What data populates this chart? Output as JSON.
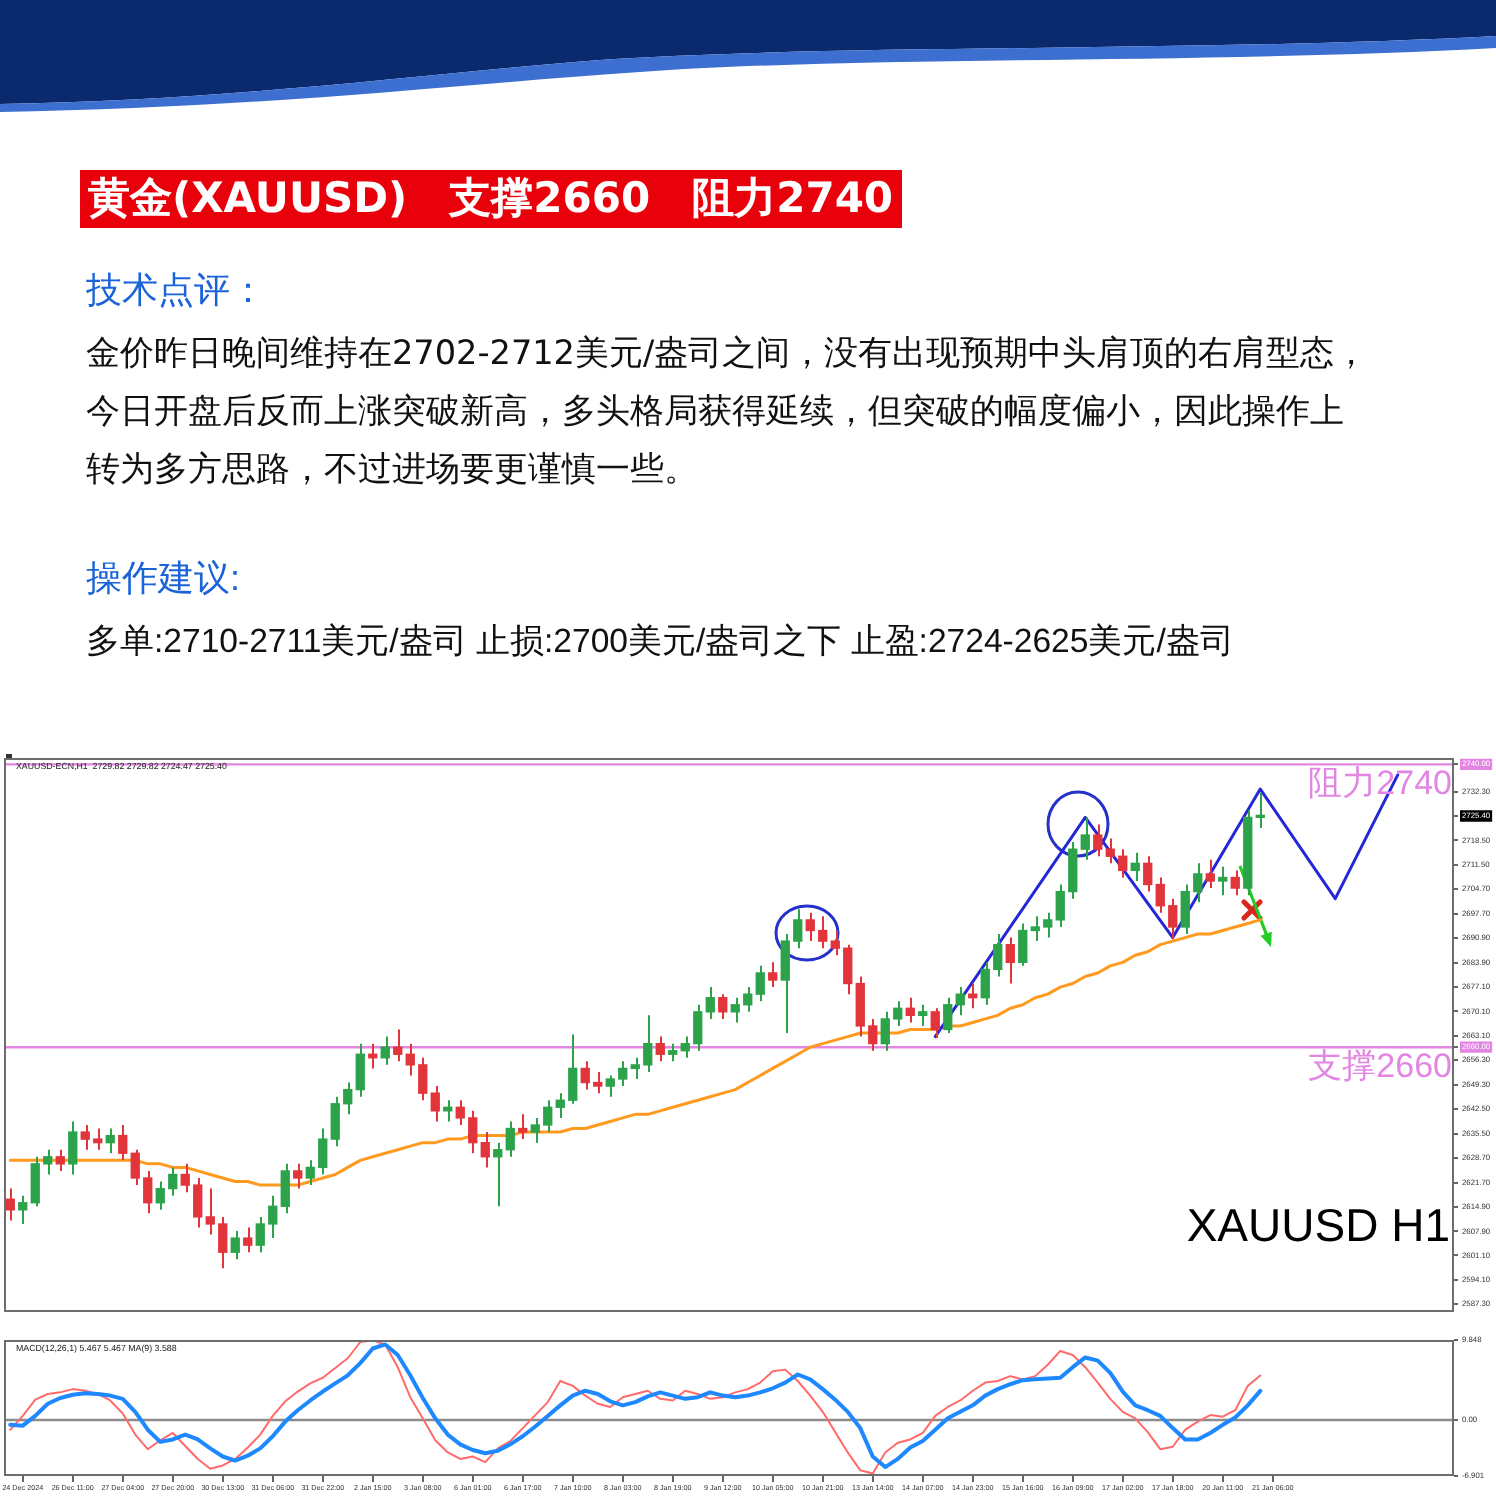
{
  "chart_data": [
    {
      "type": "other",
      "title": "黄金(XAUUSD)　支撑2660　阻力2740",
      "annotations": [
        "技术点评：",
        "金价昨日晚间维持在2702-2712美元/盎司之间，没有出现预期中头肩顶的右肩型态，今日开盘后反而上涨突破新高，多头格局获得延续，但突破的幅度偏小，因此操作上转为多方思路，不过进场要更谨慎一些。",
        "操作建议:",
        "多单:2710-2711美元/盎司 止损:2700美元/盎司之下 止盈:2724-2625美元/盎司"
      ]
    },
    {
      "type": "candlestick",
      "categories": [
        null,
        null,
        null,
        null,
        null,
        null,
        null,
        null,
        null,
        null,
        null,
        null,
        null,
        null,
        null,
        null,
        null,
        null,
        null,
        null,
        null,
        null,
        null,
        null,
        null,
        null,
        null,
        null,
        null,
        null,
        null,
        null,
        null,
        null,
        null,
        null,
        null,
        null,
        null,
        null,
        null,
        null,
        null,
        null,
        null,
        null,
        null,
        null,
        null,
        null,
        null,
        null,
        null,
        null,
        null,
        null,
        null,
        null,
        null,
        null,
        null,
        null,
        null,
        null,
        null,
        null,
        null,
        null,
        null,
        null,
        null,
        null,
        null,
        null,
        null,
        null,
        null,
        null,
        null,
        null,
        null,
        null,
        null,
        null,
        null,
        null,
        null,
        null,
        null,
        null,
        null,
        null,
        null,
        null,
        null,
        null,
        null,
        null,
        null,
        null,
        null,
        null,
        null,
        null,
        null,
        null,
        null,
        null,
        null,
        null,
        null,
        null,
        null,
        null,
        null,
        null
      ],
      "ohlc": [
        [
          2617,
          2620,
          2611,
          2614
        ],
        [
          2614,
          2618,
          2610,
          2616
        ],
        [
          2616,
          2629,
          2615,
          2627
        ],
        [
          2627,
          2631,
          2624,
          2629
        ],
        [
          2629,
          2631,
          2625,
          2627
        ],
        [
          2627,
          2639,
          2624,
          2636
        ],
        [
          2636,
          2638,
          2631,
          2634
        ],
        [
          2634,
          2637,
          2631,
          2633
        ],
        [
          2633,
          2637,
          2630,
          2635
        ],
        [
          2635,
          2638,
          2628,
          2630
        ],
        [
          2630,
          2631,
          2621,
          2623
        ],
        [
          2623,
          2625,
          2613,
          2616
        ],
        [
          2616,
          2622,
          2614,
          2620
        ],
        [
          2620,
          2626,
          2618,
          2624
        ],
        [
          2624,
          2627,
          2619,
          2621
        ],
        [
          2621,
          2623,
          2609,
          2612
        ],
        [
          2612,
          2620,
          2607,
          2610
        ],
        [
          2610,
          2612,
          2597.5,
          2602
        ],
        [
          2602,
          2608,
          2600,
          2606
        ],
        [
          2606,
          2609,
          2602,
          2604
        ],
        [
          2604,
          2612,
          2602,
          2610
        ],
        [
          2610,
          2618,
          2606,
          2615
        ],
        [
          2615,
          2627,
          2613,
          2625
        ],
        [
          2625,
          2627,
          2620,
          2623
        ],
        [
          2623,
          2628,
          2621,
          2626
        ],
        [
          2626,
          2637,
          2624,
          2634
        ],
        [
          2634,
          2646,
          2632,
          2644
        ],
        [
          2644,
          2650,
          2641,
          2648
        ],
        [
          2648,
          2661,
          2646,
          2658
        ],
        [
          2658,
          2661,
          2654,
          2657
        ],
        [
          2657,
          2663,
          2655,
          2660
        ],
        [
          2660,
          2665,
          2656,
          2658
        ],
        [
          2658,
          2661,
          2652,
          2655
        ],
        [
          2655,
          2657,
          2645,
          2647
        ],
        [
          2647,
          2649,
          2639,
          2642
        ],
        [
          2642,
          2645,
          2639,
          2643
        ],
        [
          2643,
          2645,
          2638,
          2640
        ],
        [
          2640,
          2642,
          2630,
          2633
        ],
        [
          2633,
          2636,
          2626,
          2629
        ],
        [
          2629,
          2633,
          2615,
          2631
        ],
        [
          2631,
          2639,
          2629,
          2637
        ],
        [
          2637,
          2641,
          2634,
          2636
        ],
        [
          2636,
          2640,
          2633,
          2638
        ],
        [
          2638,
          2645,
          2636,
          2643
        ],
        [
          2643,
          2647,
          2640,
          2645
        ],
        [
          2645,
          2663.6,
          2644,
          2654
        ],
        [
          2654,
          2656,
          2648,
          2650
        ],
        [
          2650,
          2653,
          2647,
          2649
        ],
        [
          2649,
          2652,
          2646,
          2651
        ],
        [
          2651,
          2656,
          2649,
          2654
        ],
        [
          2654,
          2657,
          2651,
          2655
        ],
        [
          2655,
          2669,
          2653,
          2661
        ],
        [
          2661,
          2663,
          2656,
          2658
        ],
        [
          2658,
          2661,
          2656,
          2659
        ],
        [
          2659,
          2663,
          2657,
          2661
        ],
        [
          2661,
          2672,
          2659,
          2670
        ],
        [
          2670,
          2677,
          2668,
          2674
        ],
        [
          2674,
          2675,
          2668,
          2670
        ],
        [
          2670,
          2674,
          2667,
          2672
        ],
        [
          2672,
          2677,
          2670,
          2675
        ],
        [
          2675,
          2683,
          2673,
          2681
        ],
        [
          2681,
          2684,
          2677,
          2679
        ],
        [
          2679,
          2692,
          2664,
          2690
        ],
        [
          2690,
          2699,
          2688,
          2696
        ],
        [
          2696,
          2698,
          2690,
          2693
        ],
        [
          2693,
          2697,
          2688,
          2690
        ],
        [
          2690,
          2693,
          2686,
          2688
        ],
        [
          2688,
          2689,
          2675,
          2678
        ],
        [
          2678,
          2680,
          2663,
          2666
        ],
        [
          2666,
          2668,
          2659,
          2661
        ],
        [
          2661,
          2670,
          2659,
          2668
        ],
        [
          2668,
          2673,
          2666,
          2671
        ],
        [
          2671,
          2674,
          2667,
          2669
        ],
        [
          2669,
          2672,
          2666,
          2670
        ],
        [
          2670,
          2671,
          2662.6,
          2665
        ],
        [
          2665,
          2674,
          2664,
          2672
        ],
        [
          2672,
          2677,
          2669,
          2675
        ],
        [
          2675,
          2678,
          2671,
          2674
        ],
        [
          2674,
          2684,
          2672,
          2682
        ],
        [
          2682,
          2692,
          2680,
          2689
        ],
        [
          2689,
          2691,
          2678,
          2684
        ],
        [
          2684,
          2695,
          2683,
          2693
        ],
        [
          2693,
          2697,
          2690,
          2694
        ],
        [
          2694,
          2698,
          2691,
          2696
        ],
        [
          2696,
          2706,
          2694,
          2704
        ],
        [
          2704,
          2718,
          2702,
          2716
        ],
        [
          2716,
          2725,
          2713,
          2720
        ],
        [
          2720,
          2723,
          2714,
          2716
        ],
        [
          2716,
          2719,
          2712,
          2714
        ],
        [
          2714,
          2716,
          2708,
          2710
        ],
        [
          2710,
          2715,
          2707,
          2712
        ],
        [
          2712,
          2714,
          2704,
          2706
        ],
        [
          2706,
          2708,
          2698,
          2700
        ],
        [
          2700,
          2702,
          2690.5,
          2694
        ],
        [
          2694,
          2706,
          2692,
          2704
        ],
        [
          2704,
          2712,
          2701,
          2709
        ],
        [
          2709,
          2713,
          2705,
          2707
        ],
        [
          2707,
          2711,
          2703,
          2708
        ],
        [
          2708,
          2710,
          2703,
          2705
        ],
        [
          2705,
          2727,
          2703,
          2725
        ],
        [
          2725,
          2732,
          2722,
          2725.4
        ],
        null,
        null,
        null,
        null,
        null,
        null,
        null,
        null,
        null,
        null,
        null,
        null,
        null,
        null,
        null
      ],
      "colors": [
        "#e2343b",
        "#2ca24a",
        "#2ca24a",
        "#2ca24a",
        "#e2343b",
        "#2ca24a",
        "#e2343b",
        "#e2343b",
        "#2ca24a",
        "#e2343b",
        "#e2343b",
        "#e2343b",
        "#2ca24a",
        "#2ca24a",
        "#e2343b",
        "#e2343b",
        "#e2343b",
        "#e2343b",
        "#2ca24a",
        "#e2343b",
        "#2ca24a",
        "#2ca24a",
        "#2ca24a",
        "#e2343b",
        "#2ca24a",
        "#2ca24a",
        "#2ca24a",
        "#2ca24a",
        "#2ca24a",
        "#e2343b",
        "#2ca24a",
        "#e2343b",
        "#e2343b",
        "#e2343b",
        "#e2343b",
        "#2ca24a",
        "#e2343b",
        "#e2343b",
        "#e2343b",
        "#2ca24a",
        "#2ca24a",
        "#e2343b",
        "#2ca24a",
        "#2ca24a",
        "#2ca24a",
        "#2ca24a",
        "#e2343b",
        "#e2343b",
        "#2ca24a",
        "#2ca24a",
        "#2ca24a",
        "#2ca24a",
        "#e2343b",
        "#2ca24a",
        "#2ca24a",
        "#2ca24a",
        "#2ca24a",
        "#e2343b",
        "#2ca24a",
        "#2ca24a",
        "#2ca24a",
        "#e2343b",
        "#2ca24a",
        "#2ca24a",
        "#e2343b",
        "#e2343b",
        "#e2343b",
        "#e2343b",
        "#e2343b",
        "#e2343b",
        "#2ca24a",
        "#2ca24a",
        "#e2343b",
        "#2ca24a",
        "#e2343b",
        "#2ca24a",
        "#2ca24a",
        "#e2343b",
        "#2ca24a",
        "#2ca24a",
        "#e2343b",
        "#2ca24a",
        "#2ca24a",
        "#2ca24a",
        "#2ca24a",
        "#2ca24a",
        "#2ca24a",
        "#e2343b",
        "#e2343b",
        "#e2343b",
        "#2ca24a",
        "#e2343b",
        "#e2343b",
        "#e2343b",
        "#2ca24a",
        "#2ca24a",
        "#e2343b",
        "#2ca24a",
        "#e2343b",
        "#2ca24a",
        "#2ca24a",
        null,
        null,
        null,
        null,
        null,
        null,
        null,
        null,
        null,
        null,
        null,
        null,
        null,
        null,
        null
      ],
      "series": [
        {
          "type": "line",
          "color": "#ff9a1f",
          "values": [
            2628,
            2628,
            2628,
            2628,
            2628,
            2628,
            2628,
            2628,
            2628,
            2628,
            2628,
            2627,
            2627,
            2626,
            2626,
            2625,
            2624,
            2623,
            2622,
            2622,
            2621,
            2621,
            2621,
            2621,
            2622,
            2623,
            2624,
            2626,
            2628,
            2629,
            2630,
            2631,
            2632,
            2633,
            2633,
            2634,
            2634,
            2635,
            2635,
            2635,
            2635,
            2636,
            2636,
            2636,
            2636,
            2637,
            2637,
            2638,
            2639,
            2640,
            2641,
            2641,
            2642,
            2643,
            2644,
            2645,
            2646,
            2647,
            2648,
            2650,
            2652,
            2654,
            2656,
            2658,
            2660,
            2661,
            2662,
            2663,
            2664,
            2664,
            2664,
            2664,
            2665,
            2665,
            2665,
            2666,
            2666,
            2667,
            2668,
            2669,
            2671,
            2672,
            2674,
            2675,
            2677,
            2678,
            2680,
            2681,
            2683,
            2684,
            2686,
            2687,
            2689,
            2690,
            2691,
            2692,
            2692,
            2693,
            2694,
            2695,
            2696,
            null,
            null,
            null,
            null,
            null,
            null,
            null,
            null,
            null,
            null,
            null,
            null,
            null,
            null,
            null
          ]
        },
        {
          "type": "line",
          "color": "#2626d9",
          "values": [
            null,
            null,
            null,
            null,
            null,
            null,
            null,
            null,
            null,
            null,
            null,
            null,
            null,
            null,
            null,
            null,
            null,
            null,
            null,
            null,
            null,
            null,
            null,
            null,
            null,
            null,
            null,
            null,
            null,
            null,
            null,
            null,
            null,
            null,
            null,
            null,
            null,
            null,
            null,
            null,
            null,
            null,
            null,
            null,
            null,
            null,
            null,
            null,
            null,
            null,
            null,
            null,
            null,
            null,
            null,
            null,
            null,
            null,
            null,
            null,
            null,
            null,
            null,
            null,
            null,
            null,
            null,
            null,
            null,
            null,
            null,
            null,
            null,
            null,
            2663,
            null,
            null,
            null,
            null,
            null,
            null,
            null,
            null,
            null,
            null,
            null,
            2725,
            null,
            null,
            null,
            null,
            null,
            null,
            2691,
            null,
            null,
            null,
            null,
            null,
            null,
            2733,
            null,
            null,
            null,
            null,
            null,
            2702,
            null,
            null,
            null,
            null,
            2737,
            null,
            null,
            null,
            null
          ]
        }
      ],
      "ylim": [
        2585.1,
        2741.6
      ],
      "yticks": [
        {
          "value": 2740,
          "label": "2740.00"
        },
        {
          "value": 2732.3,
          "label": "2732.30"
        },
        {
          "value": 2725.4,
          "label": "2725.40"
        },
        {
          "value": 2718.5,
          "label": "2718.50"
        },
        {
          "value": 2711.5,
          "label": "2711.50"
        },
        {
          "value": 2704.7,
          "label": "2704.70"
        },
        {
          "value": 2697.7,
          "label": "2697.70"
        },
        {
          "value": 2690.9,
          "label": "2690.90"
        },
        {
          "value": 2683.9,
          "label": "2683.90"
        },
        {
          "value": 2677.1,
          "label": "2677.10"
        },
        {
          "value": 2670.1,
          "label": "2670.10"
        },
        {
          "value": 2663.1,
          "label": "2663.10"
        },
        {
          "value": 2660,
          "label": "2660.00"
        },
        {
          "value": 2656.3,
          "label": "2656.30"
        },
        {
          "value": 2649.3,
          "label": "2649.30"
        },
        {
          "value": 2642.5,
          "label": "2642.50"
        },
        {
          "value": 2635.5,
          "label": "2635.50"
        },
        {
          "value": 2628.7,
          "label": "2628.70"
        },
        {
          "value": 2621.7,
          "label": "2621.70"
        },
        {
          "value": 2614.9,
          "label": "2614.90"
        },
        {
          "value": 2607.9,
          "label": "2607.90"
        },
        {
          "value": 2601.1,
          "label": "2601.10"
        },
        {
          "value": 2594.1,
          "label": "2594.10"
        },
        {
          "value": 2587.3,
          "label": "2587.30"
        }
      ],
      "ref_lines": [
        {
          "axis": "y",
          "value": 2740,
          "label": "阻力2740",
          "color": "#e286e2"
        },
        {
          "axis": "y",
          "value": 2660,
          "label": "支撑2660",
          "color": "#e286e2"
        }
      ],
      "annotations": [
        "XAUUSD-ECN,H1  2729.82 2729.82 2724.47 2725.40",
        "XAUUSD H1"
      ],
      "tick_labels": "y",
      "marker": "none"
    },
    {
      "type": "line",
      "categories": [
        null,
        "24 Dec 2024",
        null,
        null,
        null,
        "26 Dec 11:00",
        null,
        null,
        null,
        "27 Dec 04:00",
        null,
        null,
        null,
        "27 Dec 20:00",
        null,
        null,
        null,
        "30 Dec 13:00",
        null,
        null,
        null,
        "31 Dec 06:00",
        null,
        null,
        null,
        "31 Dec 22:00",
        null,
        null,
        null,
        "2 Jan 15:00",
        null,
        null,
        null,
        "3 Jan 08:00",
        null,
        null,
        null,
        "6 Jan 01:00",
        null,
        null,
        null,
        "6 Jan 17:00",
        null,
        null,
        null,
        "7 Jan 10:00",
        null,
        null,
        null,
        "8 Jan 03:00",
        null,
        null,
        null,
        "8 Jan 19:00",
        null,
        null,
        null,
        "9 Jan 12:00",
        null,
        null,
        null,
        "10 Jan 05:00",
        null,
        null,
        null,
        "10 Jan 21:00",
        null,
        null,
        null,
        "13 Jan 14:00",
        null,
        null,
        null,
        "14 Jan 07:00",
        null,
        null,
        null,
        "14 Jan 23:00",
        null,
        null,
        null,
        "15 Jan 16:00",
        null,
        null,
        null,
        "16 Jan 09:00",
        null,
        null,
        null,
        "17 Jan 02:00",
        null,
        null,
        null,
        "17 Jan 18:00",
        null,
        null,
        null,
        "20 Jan 11:00",
        null,
        null,
        null,
        "21 Jan 06:00",
        null,
        null,
        null,
        null,
        null,
        null,
        null,
        null,
        null,
        null,
        null,
        null,
        null,
        null
      ],
      "series": [
        {
          "color": "#ff6b6b",
          "values": [
            -1.2,
            0.5,
            2.5,
            3.2,
            3.4,
            3.8,
            3.6,
            3.2,
            2.4,
            0.8,
            -1.8,
            -3.6,
            -2.5,
            -1.6,
            -3.2,
            -4.8,
            -6.0,
            -5.6,
            -4.8,
            -3.4,
            -1.8,
            0.5,
            2.3,
            3.5,
            4.5,
            5.2,
            6.4,
            7.6,
            9.6,
            9.8,
            9.3,
            6.5,
            2.8,
            0.2,
            -2.5,
            -4.0,
            -4.8,
            -4.5,
            -5.2,
            -3.5,
            -2.6,
            -1.0,
            0.6,
            2.2,
            4.8,
            4.2,
            3.0,
            2.0,
            1.6,
            2.8,
            3.2,
            3.6,
            2.6,
            2.4,
            3.6,
            3.2,
            2.6,
            2.8,
            3.4,
            3.8,
            4.6,
            6.0,
            6.2,
            4.8,
            3.0,
            1.0,
            -1.5,
            -4.0,
            -6.2,
            -6.6,
            -4.0,
            -2.8,
            -2.4,
            -1.6,
            0.5,
            1.6,
            2.4,
            3.6,
            4.6,
            4.8,
            5.4,
            5.0,
            5.4,
            6.8,
            8.5,
            8.0,
            6.5,
            4.6,
            2.6,
            1.0,
            0.2,
            -1.5,
            -3.6,
            -3.3,
            -1.2,
            -0.2,
            0.6,
            0.4,
            1.2,
            4.2,
            5.467,
            null,
            null,
            null,
            null,
            null,
            null,
            null,
            null,
            null,
            null,
            null,
            null,
            null,
            null,
            null
          ]
        },
        {
          "color": "#1e88ff",
          "values": [
            -0.6,
            -0.7,
            0.5,
            2.0,
            2.7,
            3.1,
            3.3,
            3.2,
            3.0,
            2.6,
            1.0,
            -1.2,
            -2.7,
            -2.4,
            -1.8,
            -2.4,
            -3.5,
            -4.5,
            -5.0,
            -4.4,
            -3.5,
            -2.0,
            -0.2,
            1.2,
            2.4,
            3.5,
            4.5,
            5.5,
            7.0,
            8.8,
            9.3,
            8.0,
            5.5,
            2.7,
            0.2,
            -1.8,
            -3.0,
            -3.7,
            -4.1,
            -3.8,
            -3.0,
            -2.0,
            -0.8,
            0.5,
            1.8,
            3.0,
            3.6,
            3.2,
            2.3,
            1.8,
            2.2,
            2.9,
            3.4,
            3.0,
            2.6,
            2.8,
            3.4,
            3.0,
            2.8,
            3.0,
            3.4,
            3.9,
            4.6,
            5.6,
            5.0,
            3.8,
            2.5,
            1.0,
            -1.0,
            -4.5,
            -5.8,
            -4.8,
            -3.4,
            -2.6,
            -1.2,
            0.2,
            1.0,
            1.8,
            3.0,
            3.8,
            4.4,
            4.9,
            5.0,
            5.1,
            5.2,
            6.5,
            7.7,
            7.3,
            5.8,
            3.5,
            1.8,
            1.2,
            0.5,
            -1.0,
            -2.4,
            -2.4,
            -1.6,
            -0.6,
            0.3,
            1.8,
            3.588,
            null,
            null,
            null,
            null,
            null,
            null,
            null,
            null,
            null,
            null,
            null,
            null,
            null,
            null,
            null
          ]
        }
      ],
      "ylim": [
        -6.901,
        9.848
      ],
      "yticks": [
        9.848,
        {
          "value": 0,
          "label": "0.00"
        },
        -6.901
      ],
      "ref_lines": [
        {
          "axis": "y",
          "value": 0,
          "color": "#8c8c8c"
        }
      ],
      "annotations": [
        "MACD(12,26,1) 5.467 5.467 MA(9) 3.588"
      ],
      "marker": "none"
    }
  ]
}
